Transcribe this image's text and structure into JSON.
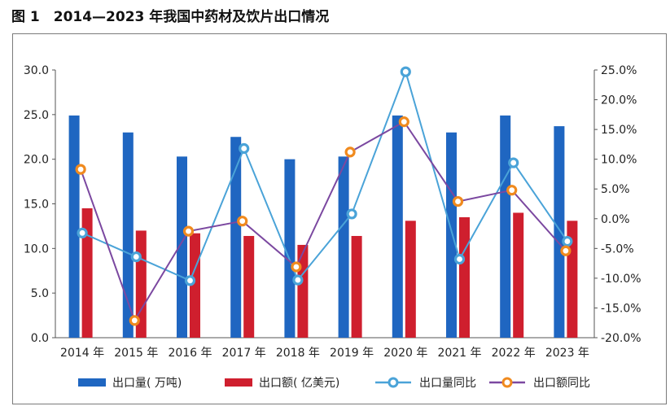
{
  "figure": {
    "title": "图 1　2014—2023 年我国中药材及饮片出口情况"
  },
  "chart_data": {
    "type": "bar",
    "title": "",
    "xlabel": "",
    "ylabel": "",
    "categories": [
      "2014 年",
      "2015 年",
      "2016 年",
      "2017 年",
      "2018 年",
      "2019 年",
      "2020 年",
      "2021 年",
      "2022 年",
      "2023 年"
    ],
    "y_left": {
      "min": 0,
      "max": 30,
      "step": 5,
      "tick_labels": [
        "0.0",
        "5.0",
        "10.0",
        "15.0",
        "20.0",
        "25.0",
        "30.0"
      ]
    },
    "y_right": {
      "min": -20,
      "max": 25,
      "step": 5,
      "tick_labels": [
        "-20.0%",
        "-15.0%",
        "-10.0%",
        "-5.0%",
        "0.0%",
        "5.0%",
        "10.0%",
        "15.0%",
        "20.0%",
        "25.0%"
      ]
    },
    "grid": false,
    "legend_position": "bottom",
    "series": [
      {
        "name": "出口量( 万吨)",
        "type": "bar",
        "axis": "left",
        "color": "#1f66c1",
        "values": [
          24.9,
          23.0,
          20.3,
          22.5,
          20.0,
          20.3,
          24.9,
          23.0,
          24.9,
          23.7
        ]
      },
      {
        "name": "出口额( 亿美元)",
        "type": "bar",
        "axis": "left",
        "color": "#cf1f2e",
        "values": [
          14.5,
          12.0,
          11.7,
          11.4,
          10.4,
          11.4,
          13.1,
          13.5,
          14.0,
          13.1
        ]
      },
      {
        "name": "出口量同比",
        "type": "line",
        "axis": "right",
        "color": "#4aa3d8",
        "marker_fill": "#ffffff",
        "values": [
          -2.4,
          -6.4,
          -10.4,
          11.8,
          -10.3,
          0.8,
          24.7,
          -6.8,
          9.4,
          -3.8
        ]
      },
      {
        "name": "出口额同比",
        "type": "line",
        "axis": "right",
        "color": "#7b48a0",
        "marker_fill": "#ffffff",
        "marker_stroke": "#f08a1e",
        "values": [
          8.3,
          -17.1,
          -2.1,
          -0.4,
          -8.1,
          11.2,
          16.3,
          2.9,
          4.8,
          -5.4
        ]
      }
    ]
  }
}
